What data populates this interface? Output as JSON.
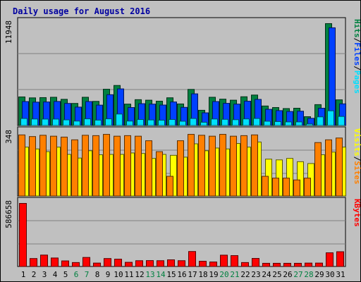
{
  "chart_data": {
    "type": "bar",
    "title": "Daily usage for August 2016",
    "categories": [
      "1",
      "2",
      "3",
      "4",
      "5",
      "6",
      "7",
      "8",
      "9",
      "10",
      "11",
      "12",
      "13",
      "14",
      "15",
      "16",
      "17",
      "18",
      "19",
      "20",
      "21",
      "22",
      "23",
      "24",
      "25",
      "26",
      "27",
      "28",
      "29",
      "30",
      "31"
    ],
    "weekend_days": [
      "6",
      "7",
      "13",
      "14",
      "20",
      "21",
      "27",
      "28"
    ],
    "panels": [
      {
        "name": "hits_files_pages",
        "ymax_label": "11948",
        "ylim": [
          0,
          11948
        ],
        "right_label": [
          "Pages",
          "/",
          "Files",
          "/",
          "Hits"
        ],
        "series": [
          {
            "name": "Hits",
            "color": "#008040",
            "values": [
              3380,
              3270,
              3300,
              3340,
              3100,
              2620,
              3340,
              2860,
              4280,
              4720,
              2540,
              3060,
              3000,
              2880,
              3280,
              2560,
              4260,
              1820,
              3340,
              3120,
              3000,
              3400,
              3600,
              2320,
              2140,
              2020,
              2060,
              1070,
              2480,
              11950,
              3040
            ]
          },
          {
            "name": "Files",
            "color": "#0040ff",
            "values": [
              2840,
              2770,
              2790,
              2850,
              2620,
              2190,
              2840,
              2420,
              3640,
              4320,
              2140,
              2590,
              2540,
              2430,
              2790,
              2160,
              3740,
              1520,
              2840,
              2630,
              2540,
              2880,
              3090,
              1930,
              1780,
              1680,
              1710,
              880,
              2060,
              11460,
              2570
            ]
          },
          {
            "name": "Pages",
            "color": "#00e0ff",
            "values": [
              860,
              800,
              790,
              790,
              700,
              560,
              820,
              670,
              820,
              1380,
              560,
              740,
              690,
              660,
              740,
              540,
              860,
              420,
              800,
              760,
              720,
              810,
              860,
              540,
              500,
              460,
              460,
              220,
              1050,
              1760,
              1100
            ]
          }
        ]
      },
      {
        "name": "visits_sites",
        "ymax_label": "348",
        "ylim": [
          0,
          348
        ],
        "right_label": [
          "Sites",
          "/",
          "Visits"
        ],
        "series": [
          {
            "name": "Visits",
            "color": "#ffff00",
            "values": [
              270,
              260,
              245,
              270,
              230,
              210,
              250,
              228,
              230,
              230,
              238,
              235,
              208,
              230,
              225,
              215,
              288,
              250,
              265,
              260,
              290,
              270,
              298,
              204,
              200,
              208,
              190,
              180,
              228,
              243,
              270
            ]
          },
          {
            "name": "Sites",
            "color": "#ff8000",
            "values": [
              337,
              328,
              335,
              330,
              325,
              310,
              335,
              333,
              340,
              330,
              333,
              330,
              305,
              245,
              110,
              305,
              340,
              335,
              330,
              340,
              330,
              333,
              337,
              110,
              100,
              100,
              90,
              100,
              295,
              310,
              320
            ]
          }
        ]
      },
      {
        "name": "kbytes",
        "ymax_label": "586658",
        "ylim": [
          0,
          586658
        ],
        "right_label": [
          "KBytes"
        ],
        "series": [
          {
            "name": "KBytes",
            "color": "#ff0000",
            "values": [
              586658,
              77000,
              109000,
              82000,
              55000,
              40000,
              87000,
              35000,
              77000,
              71000,
              42000,
              57000,
              58000,
              57000,
              65000,
              57000,
              142000,
              52000,
              45000,
              108000,
              104000,
              40000,
              78000,
              33000,
              33000,
              33000,
              33000,
              35000,
              35000,
              130000,
              140000
            ]
          }
        ]
      }
    ],
    "day_label_colors": {
      "weekday": "#000000",
      "weekend": "#008040"
    }
  }
}
